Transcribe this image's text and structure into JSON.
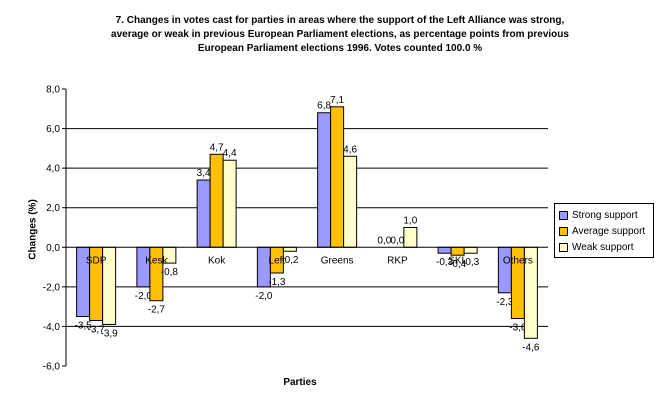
{
  "chart_data": {
    "type": "bar",
    "title": "7. Changes in votes cast for parties in areas where the support of the Left Alliance was strong, average or weak in previous European Parliament elections, as percentage points from previous European Parliament elections 1996. Votes counted 100.0 %",
    "title_lines": [
      "7. Changes in votes cast for parties in areas where the support of the Left Alliance was strong,",
      "average or weak in previous European Parliament elections, as percentage points from previous",
      "European Parliament elections 1996. Votes counted 100.0 %"
    ],
    "xlabel": "Parties",
    "ylabel": "Changes (%)",
    "ylim": [
      -6,
      8
    ],
    "yticks": [
      "-6,0",
      "-4,0",
      "-2,0",
      "0,0",
      "2,0",
      "4,0",
      "6,0",
      "8,0"
    ],
    "grid": true,
    "legend_position": "right",
    "categories": [
      "SDP",
      "Kesk",
      "Kok",
      "Left",
      "Greens",
      "RKP",
      "SKL",
      "Others"
    ],
    "series": [
      {
        "name": "Strong support",
        "color": "#9999ff",
        "values": [
          -3.5,
          -2.0,
          3.4,
          -2.0,
          6.8,
          0.0,
          -0.3,
          -2.3
        ],
        "labels": [
          "-3,5",
          "-2,0",
          "3,4",
          "-2,0",
          "6,8",
          "0,0",
          "-0,3",
          "-2,3"
        ]
      },
      {
        "name": "Average support",
        "color": "#ffc000",
        "values": [
          -3.7,
          -2.7,
          4.7,
          -1.3,
          7.1,
          0.0,
          -0.4,
          -3.6
        ],
        "labels": [
          "-3,7",
          "-2,7",
          "4,7",
          "-1,3",
          "7,1",
          "0,0",
          "-0,4",
          "-3,6"
        ]
      },
      {
        "name": "Weak support",
        "color": "#ffffcc",
        "values": [
          -3.9,
          -0.8,
          4.4,
          -0.2,
          4.6,
          1.0,
          -0.3,
          -4.6
        ],
        "labels": [
          "-3,9",
          "-0,8",
          "4,4",
          "-0,2",
          "4,6",
          "1,0",
          "-0,3",
          "-4,6"
        ]
      }
    ]
  }
}
